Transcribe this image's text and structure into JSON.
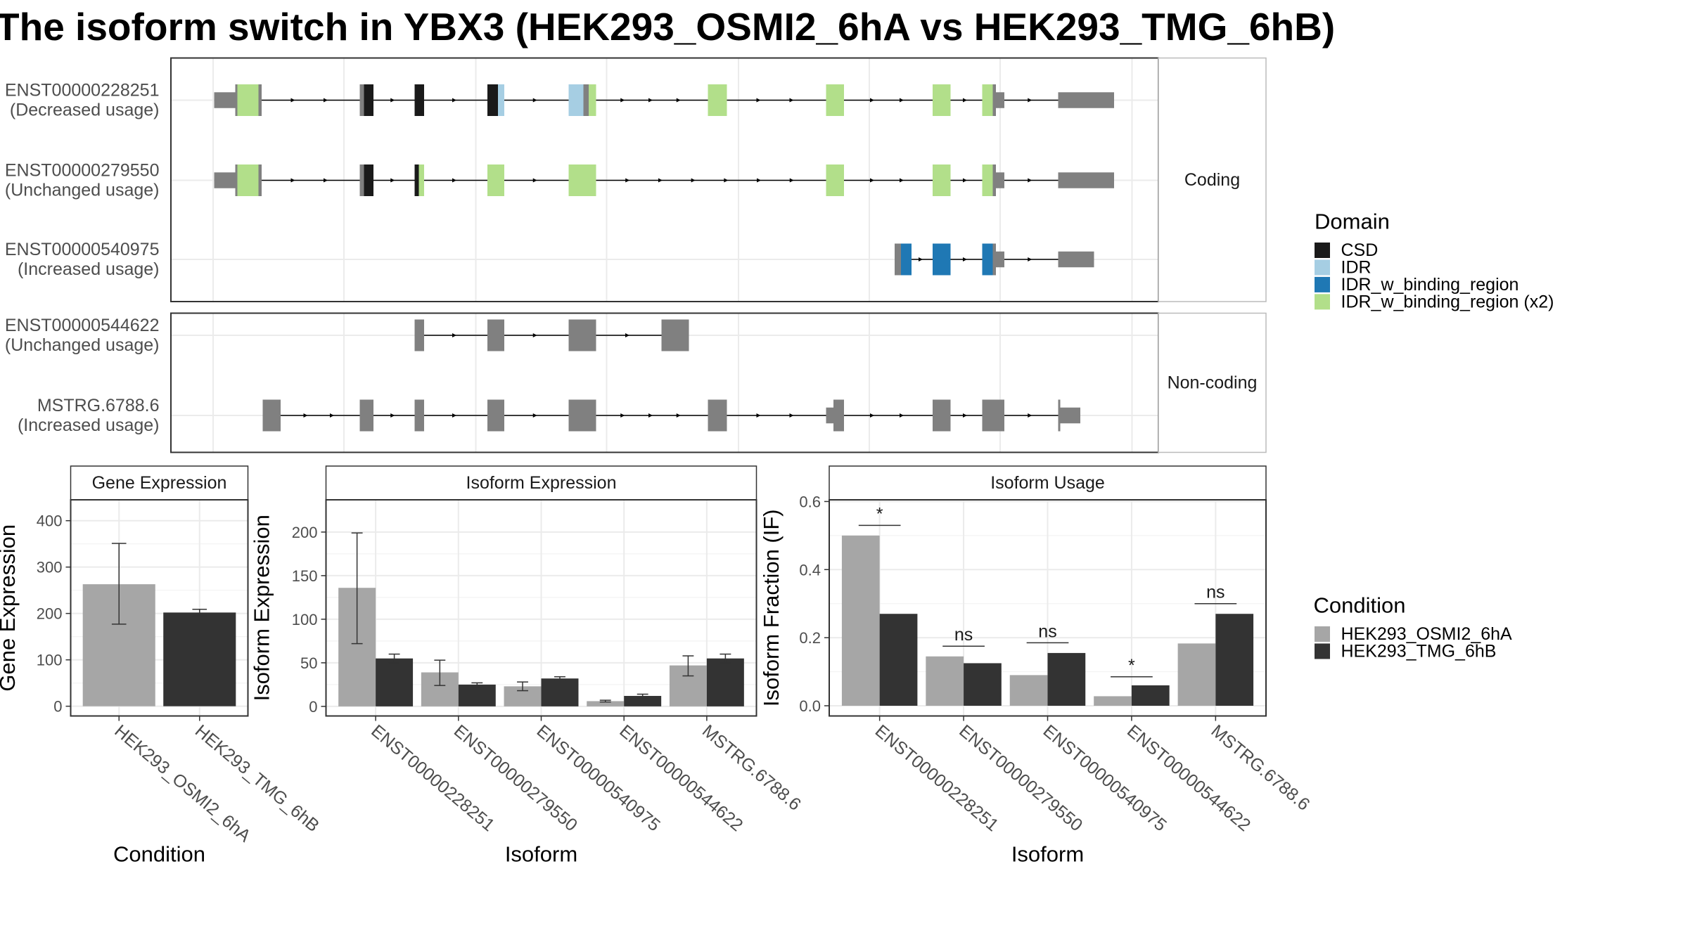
{
  "title": "The isoform switch in YBX3 (HEK293_OSMI2_6hA vs HEK293_TMG_6hB)",
  "structure": {
    "transcripts": [
      {
        "id": "ENST00000228251",
        "usage": "(Decreased usage)",
        "panel": "coding",
        "features": [
          {
            "s": 203,
            "e": 223,
            "h": "utr"
          },
          {
            "s": 223,
            "e": 225,
            "h": "cds",
            "c": "grey"
          },
          {
            "s": 225,
            "e": 245,
            "h": "cds",
            "c": "ibr2"
          },
          {
            "s": 245,
            "e": 248,
            "h": "cds",
            "c": "grey"
          },
          {
            "s": 341,
            "e": 345,
            "h": "cds",
            "c": "grey"
          },
          {
            "s": 345,
            "e": 354,
            "h": "cds",
            "c": "csd"
          },
          {
            "s": 393,
            "e": 402,
            "h": "cds",
            "c": "csd"
          },
          {
            "s": 462,
            "e": 472,
            "h": "cds",
            "c": "csd"
          },
          {
            "s": 472,
            "e": 478,
            "h": "cds",
            "c": "idr"
          },
          {
            "s": 539,
            "e": 553,
            "h": "cds",
            "c": "idr"
          },
          {
            "s": 553,
            "e": 558,
            "h": "cds",
            "c": "grey"
          },
          {
            "s": 558,
            "e": 565,
            "h": "cds",
            "c": "ibr2"
          },
          {
            "s": 671,
            "e": 689,
            "h": "cds",
            "c": "ibr2"
          },
          {
            "s": 783,
            "e": 800,
            "h": "cds",
            "c": "ibr2"
          },
          {
            "s": 884,
            "e": 901,
            "h": "cds",
            "c": "ibr2"
          },
          {
            "s": 931,
            "e": 941,
            "h": "cds",
            "c": "ibr2"
          },
          {
            "s": 941,
            "e": 944,
            "h": "cds",
            "c": "grey"
          },
          {
            "s": 944,
            "e": 952,
            "h": "utr"
          },
          {
            "s": 1003,
            "e": 1056,
            "h": "utr"
          }
        ]
      },
      {
        "id": "ENST00000279550",
        "usage": "(Unchanged usage)",
        "panel": "coding",
        "features": [
          {
            "s": 203,
            "e": 223,
            "h": "utr"
          },
          {
            "s": 223,
            "e": 225,
            "h": "cds",
            "c": "grey"
          },
          {
            "s": 225,
            "e": 245,
            "h": "cds",
            "c": "ibr2"
          },
          {
            "s": 245,
            "e": 248,
            "h": "cds",
            "c": "grey"
          },
          {
            "s": 341,
            "e": 345,
            "h": "cds",
            "c": "grey"
          },
          {
            "s": 345,
            "e": 354,
            "h": "cds",
            "c": "csd"
          },
          {
            "s": 393,
            "e": 397,
            "h": "cds",
            "c": "csd"
          },
          {
            "s": 397,
            "e": 402,
            "h": "cds",
            "c": "ibr2"
          },
          {
            "s": 462,
            "e": 478,
            "h": "cds",
            "c": "ibr2"
          },
          {
            "s": 539,
            "e": 565,
            "h": "cds",
            "c": "ibr2"
          },
          {
            "s": 783,
            "e": 800,
            "h": "cds",
            "c": "ibr2"
          },
          {
            "s": 884,
            "e": 901,
            "h": "cds",
            "c": "ibr2"
          },
          {
            "s": 931,
            "e": 941,
            "h": "cds",
            "c": "ibr2"
          },
          {
            "s": 941,
            "e": 944,
            "h": "cds",
            "c": "grey"
          },
          {
            "s": 944,
            "e": 952,
            "h": "utr"
          },
          {
            "s": 1003,
            "e": 1056,
            "h": "utr"
          }
        ]
      },
      {
        "id": "ENST00000540975",
        "usage": "(Increased usage)",
        "panel": "coding",
        "features": [
          {
            "s": 848,
            "e": 854,
            "h": "cds",
            "c": "grey"
          },
          {
            "s": 854,
            "e": 864,
            "h": "cds",
            "c": "ibr"
          },
          {
            "s": 884,
            "e": 901,
            "h": "cds",
            "c": "ibr"
          },
          {
            "s": 931,
            "e": 941,
            "h": "cds",
            "c": "ibr"
          },
          {
            "s": 941,
            "e": 944,
            "h": "cds",
            "c": "grey"
          },
          {
            "s": 944,
            "e": 952,
            "h": "utr"
          },
          {
            "s": 1003,
            "e": 1037,
            "h": "utr"
          }
        ]
      },
      {
        "id": "ENST00000544622",
        "usage": "(Unchanged usage)",
        "panel": "noncoding",
        "features": [
          {
            "s": 393,
            "e": 402,
            "h": "cds",
            "c": "grey"
          },
          {
            "s": 462,
            "e": 478,
            "h": "cds",
            "c": "grey"
          },
          {
            "s": 539,
            "e": 565,
            "h": "cds",
            "c": "grey"
          },
          {
            "s": 627,
            "e": 653,
            "h": "cds",
            "c": "grey"
          }
        ]
      },
      {
        "id": "MSTRG.6788.6",
        "usage": "(Increased usage)",
        "panel": "noncoding",
        "features": [
          {
            "s": 249,
            "e": 266,
            "h": "cds",
            "c": "grey"
          },
          {
            "s": 341,
            "e": 354,
            "h": "cds",
            "c": "grey"
          },
          {
            "s": 393,
            "e": 402,
            "h": "cds",
            "c": "grey"
          },
          {
            "s": 462,
            "e": 478,
            "h": "cds",
            "c": "grey"
          },
          {
            "s": 539,
            "e": 565,
            "h": "cds",
            "c": "grey"
          },
          {
            "s": 671,
            "e": 689,
            "h": "cds",
            "c": "grey"
          },
          {
            "s": 783,
            "e": 790,
            "h": "utr"
          },
          {
            "s": 790,
            "e": 800,
            "h": "cds",
            "c": "grey"
          },
          {
            "s": 884,
            "e": 901,
            "h": "cds",
            "c": "grey"
          },
          {
            "s": 931,
            "e": 952,
            "h": "cds",
            "c": "grey"
          },
          {
            "s": 1003,
            "e": 1005,
            "h": "cds",
            "c": "grey"
          },
          {
            "s": 1005,
            "e": 1024,
            "h": "utr"
          }
        ]
      }
    ],
    "panel_labels": {
      "coding": "Coding",
      "noncoding": "Non-coding"
    }
  },
  "legend_domain": {
    "title": "Domain",
    "items": [
      {
        "label": "CSD",
        "color": "#1a1a1a"
      },
      {
        "label": "IDR",
        "color": "#a6cee3"
      },
      {
        "label": "IDR_w_binding_region",
        "color": "#1f78b4"
      },
      {
        "label": "IDR_w_binding_region (x2)",
        "color": "#b2df8a"
      }
    ]
  },
  "legend_condition": {
    "title": "Condition",
    "items": [
      {
        "label": "HEK293_OSMI2_6hA",
        "color": "#a6a6a6"
      },
      {
        "label": "HEK293_TMG_6hB",
        "color": "#333333"
      }
    ]
  },
  "colors": {
    "grey_feature": "#808080",
    "intron": "#000000",
    "panel_border": "#333333",
    "grid": "#ebebeb"
  },
  "chart_data": [
    {
      "type": "bar",
      "title": "Gene Expression",
      "xlabel": "Condition",
      "ylabel": "Gene Expression",
      "categories": [
        "HEK293_OSMI2_6hA",
        "HEK293_TMG_6hB"
      ],
      "values": [
        263,
        202
      ],
      "error_low": [
        177,
        194
      ],
      "error_high": [
        351,
        209
      ],
      "ylim": [
        -21,
        445
      ],
      "yticks": [
        0,
        100,
        200,
        300,
        400
      ],
      "grid": true
    },
    {
      "type": "bar",
      "title": "Isoform Expression",
      "xlabel": "Isoform",
      "ylabel": "Isoform Expression",
      "categories": [
        "ENST00000228251",
        "ENST00000279550",
        "ENST00000540975",
        "ENST00000544622",
        "MSTRG.6788.6"
      ],
      "series": [
        {
          "name": "HEK293_OSMI2_6hA",
          "values": [
            136,
            39,
            23,
            6,
            47
          ],
          "error_low": [
            72,
            24,
            18,
            5,
            35
          ],
          "error_high": [
            199,
            53,
            28,
            7,
            58
          ]
        },
        {
          "name": "HEK293_TMG_6hB",
          "values": [
            55,
            25,
            32,
            12,
            55
          ],
          "error_low": [
            50,
            23,
            30,
            10,
            50
          ],
          "error_high": [
            60,
            27,
            34,
            14,
            60
          ]
        }
      ],
      "ylim": [
        -11,
        237
      ],
      "yticks": [
        0,
        50,
        100,
        150,
        200
      ],
      "grid": true
    },
    {
      "type": "bar",
      "title": "Isoform Usage",
      "xlabel": "Isoform",
      "ylabel": "Isoform Fraction (IF)",
      "categories": [
        "ENST00000228251",
        "ENST00000279550",
        "ENST00000540975",
        "ENST00000544622",
        "MSTRG.6788.6"
      ],
      "series": [
        {
          "name": "HEK293_OSMI2_6hA",
          "values": [
            0.5,
            0.145,
            0.09,
            0.028,
            0.183
          ]
        },
        {
          "name": "HEK293_TMG_6hB",
          "values": [
            0.27,
            0.125,
            0.155,
            0.06,
            0.27
          ]
        }
      ],
      "significance": [
        "*",
        "ns",
        "ns",
        "*",
        "ns"
      ],
      "sig_y": [
        0.53,
        0.175,
        0.185,
        0.085,
        0.3
      ],
      "ylim": [
        -0.03,
        0.605
      ],
      "yticks": [
        0.0,
        0.2,
        0.4,
        0.6
      ],
      "ytick_labels": [
        "0.0",
        "0.2",
        "0.4",
        "0.6"
      ],
      "grid": true
    }
  ]
}
